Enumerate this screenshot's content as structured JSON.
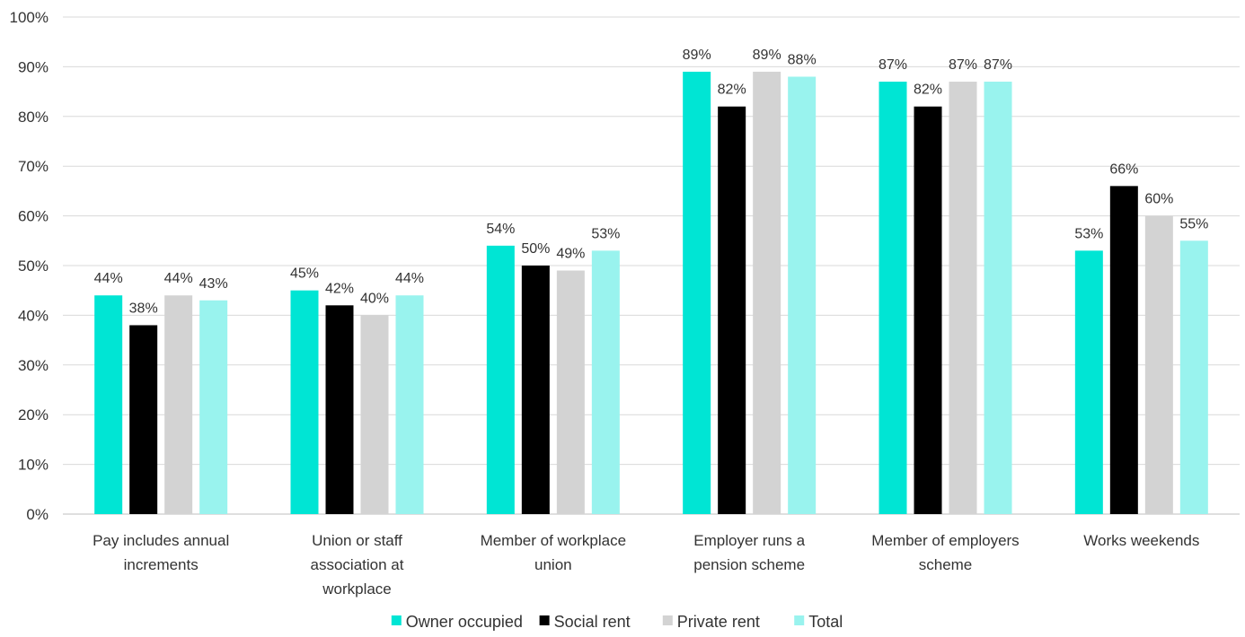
{
  "chart_data": {
    "type": "bar",
    "title": "",
    "xlabel": "",
    "ylabel": "",
    "ylim": [
      0,
      100
    ],
    "y_ticks": [
      "0%",
      "10%",
      "20%",
      "30%",
      "40%",
      "50%",
      "60%",
      "70%",
      "80%",
      "90%",
      "100%"
    ],
    "grid": true,
    "legend_position": "bottom",
    "categories": [
      [
        "Pay includes annual",
        "increments"
      ],
      [
        "Union or staff",
        "association at",
        "workplace"
      ],
      [
        "Member of workplace",
        "union"
      ],
      [
        "Employer runs a",
        "pension scheme"
      ],
      [
        "Member of employers",
        "scheme"
      ],
      [
        "Works weekends"
      ]
    ],
    "series": [
      {
        "name": "Owner occupied",
        "color": "#00e5d4",
        "values": [
          44,
          45,
          54,
          89,
          87,
          53
        ],
        "labels": [
          "44%",
          "45%",
          "54%",
          "89%",
          "87%",
          "53%"
        ]
      },
      {
        "name": "Social rent",
        "color": "#000000",
        "values": [
          38,
          42,
          50,
          82,
          82,
          66
        ],
        "labels": [
          "38%",
          "42%",
          "50%",
          "82%",
          "82%",
          "66%"
        ]
      },
      {
        "name": "Private rent",
        "color": "#d3d3d3",
        "values": [
          44,
          40,
          49,
          89,
          87,
          60
        ],
        "labels": [
          "44%",
          "40%",
          "49%",
          "89%",
          "87%",
          "60%"
        ]
      },
      {
        "name": "Total",
        "color": "#99f3ee",
        "values": [
          43,
          44,
          53,
          88,
          87,
          55
        ],
        "labels": [
          "43%",
          "44%",
          "53%",
          "88%",
          "87%",
          "55%"
        ]
      }
    ]
  }
}
